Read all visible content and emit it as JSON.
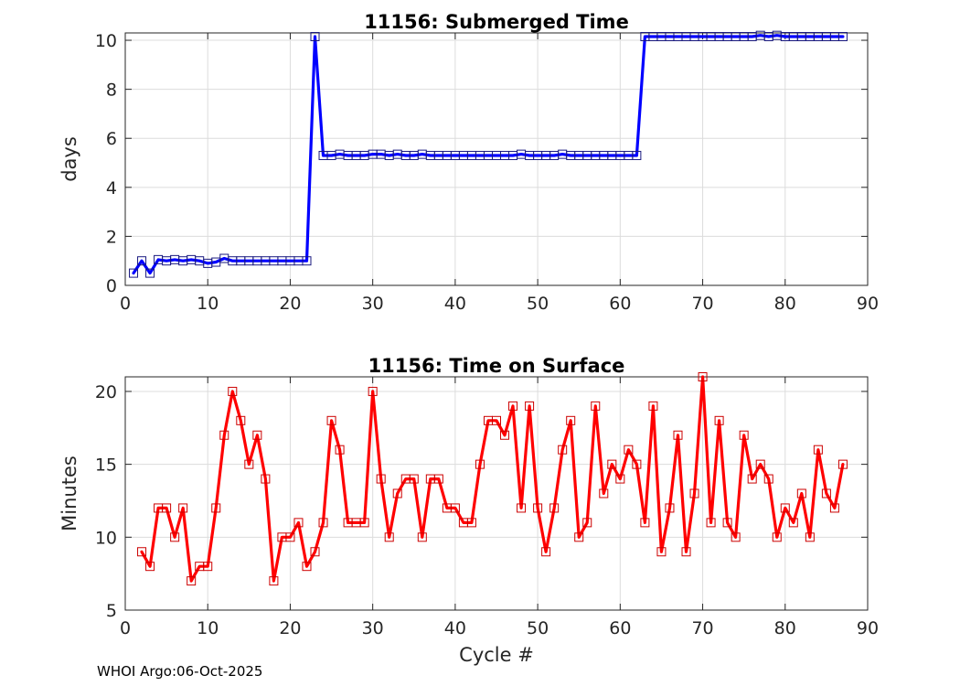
{
  "footer_text": "WHOI Argo:06-Oct-2025",
  "chart_data": [
    {
      "type": "line",
      "title": "11156: Submerged Time",
      "xlabel": "",
      "ylabel": "days",
      "xlim": [
        0,
        90
      ],
      "ylim": [
        0,
        10.3
      ],
      "xticks": [
        "0",
        "10",
        "20",
        "30",
        "40",
        "50",
        "60",
        "70",
        "80",
        "90"
      ],
      "yticks": [
        "0",
        "2",
        "4",
        "6",
        "8",
        "10"
      ],
      "xtick_values": [
        0,
        10,
        20,
        30,
        40,
        50,
        60,
        70,
        80,
        90
      ],
      "ytick_values": [
        0,
        2,
        4,
        6,
        8,
        10
      ],
      "grid": true,
      "line_color": "#0000ff",
      "marker": "square",
      "series": [
        {
          "x": [
            1,
            2,
            3,
            4,
            5,
            6,
            7,
            8,
            9,
            10,
            11,
            12,
            13,
            14,
            15,
            16,
            17,
            18,
            19,
            20,
            21,
            22,
            23,
            24,
            25,
            26,
            27,
            28,
            29,
            30,
            31,
            32,
            33,
            34,
            35,
            36,
            37,
            38,
            39,
            40,
            41,
            42,
            43,
            44,
            45,
            46,
            47,
            48,
            49,
            50,
            51,
            52,
            53,
            54,
            55,
            56,
            57,
            58,
            59,
            60,
            61,
            62,
            63,
            64,
            65,
            66,
            67,
            68,
            69,
            70,
            71,
            72,
            73,
            74,
            75,
            76,
            77,
            78,
            79,
            80,
            81,
            82,
            83,
            84,
            85,
            86,
            87
          ],
          "y": [
            0.5,
            1.0,
            0.5,
            1.05,
            1.0,
            1.05,
            1.0,
            1.05,
            1.0,
            0.9,
            0.95,
            1.1,
            1.0,
            1.0,
            1.0,
            1.0,
            1.0,
            1.0,
            1.0,
            1.0,
            1.0,
            1.0,
            10.15,
            5.3,
            5.3,
            5.35,
            5.3,
            5.3,
            5.3,
            5.35,
            5.35,
            5.3,
            5.35,
            5.3,
            5.3,
            5.35,
            5.3,
            5.3,
            5.3,
            5.3,
            5.3,
            5.3,
            5.3,
            5.3,
            5.3,
            5.3,
            5.3,
            5.35,
            5.3,
            5.3,
            5.3,
            5.3,
            5.35,
            5.3,
            5.3,
            5.3,
            5.3,
            5.3,
            5.3,
            5.3,
            5.3,
            5.3,
            10.15,
            10.15,
            10.15,
            10.15,
            10.15,
            10.15,
            10.15,
            10.15,
            10.15,
            10.15,
            10.15,
            10.15,
            10.15,
            10.15,
            10.2,
            10.15,
            10.2,
            10.15,
            10.15,
            10.15,
            10.15,
            10.15,
            10.15,
            10.15,
            10.15
          ]
        }
      ]
    },
    {
      "type": "line",
      "title": "11156: Time on Surface",
      "xlabel": "Cycle #",
      "ylabel": "Minutes",
      "xlim": [
        0,
        90
      ],
      "ylim": [
        5,
        21
      ],
      "xticks": [
        "0",
        "10",
        "20",
        "30",
        "40",
        "50",
        "60",
        "70",
        "80",
        "90"
      ],
      "yticks": [
        "5",
        "10",
        "15",
        "20"
      ],
      "xtick_values": [
        0,
        10,
        20,
        30,
        40,
        50,
        60,
        70,
        80,
        90
      ],
      "ytick_values": [
        5,
        10,
        15,
        20
      ],
      "grid": true,
      "line_color": "#ff0000",
      "marker": "square",
      "series": [
        {
          "x": [
            2,
            3,
            4,
            5,
            6,
            7,
            8,
            9,
            10,
            11,
            12,
            13,
            14,
            15,
            16,
            17,
            18,
            19,
            20,
            21,
            22,
            23,
            24,
            25,
            26,
            27,
            28,
            29,
            30,
            31,
            32,
            33,
            34,
            35,
            36,
            37,
            38,
            39,
            40,
            41,
            42,
            43,
            44,
            45,
            46,
            47,
            48,
            49,
            50,
            51,
            52,
            53,
            54,
            55,
            56,
            57,
            58,
            59,
            60,
            61,
            62,
            63,
            64,
            65,
            66,
            67,
            68,
            69,
            70,
            71,
            72,
            73,
            74,
            75,
            76,
            77,
            78,
            79,
            80,
            81,
            82,
            83,
            84,
            85,
            86,
            87
          ],
          "y": [
            9,
            8,
            12,
            12,
            10,
            12,
            7,
            8,
            8,
            12,
            17,
            20,
            18,
            15,
            17,
            14,
            7,
            10,
            10,
            11,
            8,
            9,
            11,
            18,
            16,
            11,
            11,
            11,
            20,
            14,
            10,
            13,
            14,
            14,
            10,
            14,
            14,
            12,
            12,
            11,
            11,
            15,
            18,
            18,
            17,
            19,
            12,
            19,
            12,
            9,
            12,
            16,
            18,
            10,
            11,
            19,
            13,
            15,
            14,
            16,
            15,
            11,
            19,
            9,
            12,
            17,
            9,
            13,
            21,
            11,
            18,
            11,
            10,
            17,
            14,
            15,
            14,
            10,
            12,
            11,
            13,
            10,
            16,
            13,
            12,
            15
          ]
        }
      ]
    }
  ]
}
